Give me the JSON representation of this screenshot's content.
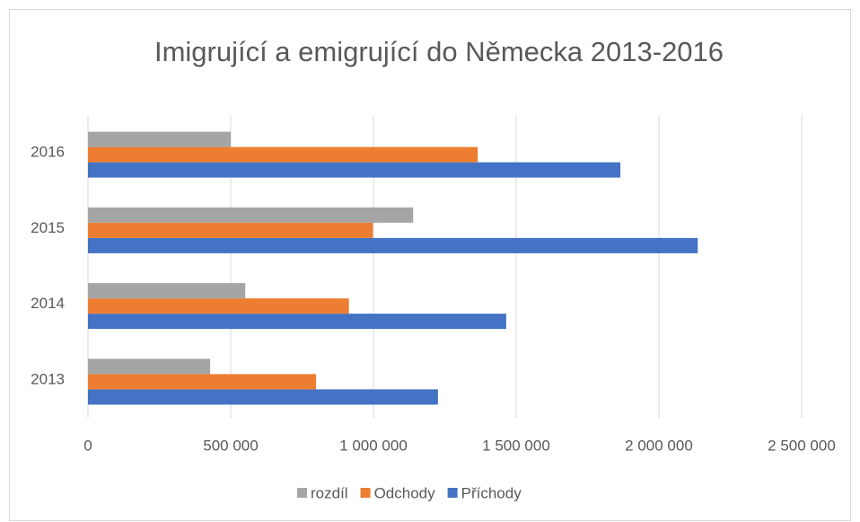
{
  "chart_data": {
    "type": "hbar",
    "title": "Imigrující a emigrující do Německa 2013-2016",
    "categories": [
      "2013",
      "2014",
      "2015",
      "2016"
    ],
    "series": [
      {
        "name": "Příchody",
        "color": "#4472c4",
        "values": [
          1226000,
          1465000,
          2136000,
          1865000
        ]
      },
      {
        "name": "Odchody",
        "color": "#ed7d31",
        "values": [
          799000,
          914000,
          998000,
          1365000
        ]
      },
      {
        "name": "rozdíl",
        "color": "#a5a5a5",
        "values": [
          428000,
          551000,
          1139000,
          500000
        ]
      }
    ],
    "xlim": [
      0,
      2500000
    ],
    "xticks": [
      0,
      {
        "value": 500000,
        "label": "500 000"
      },
      {
        "value": 1000000,
        "label": "1 000 000"
      },
      {
        "value": 1500000,
        "label": "1 500 000"
      },
      {
        "value": 2000000,
        "label": "2 000 000"
      },
      {
        "value": 2500000,
        "label": "2 500 000"
      }
    ],
    "grid": true,
    "legend": "bottom"
  }
}
